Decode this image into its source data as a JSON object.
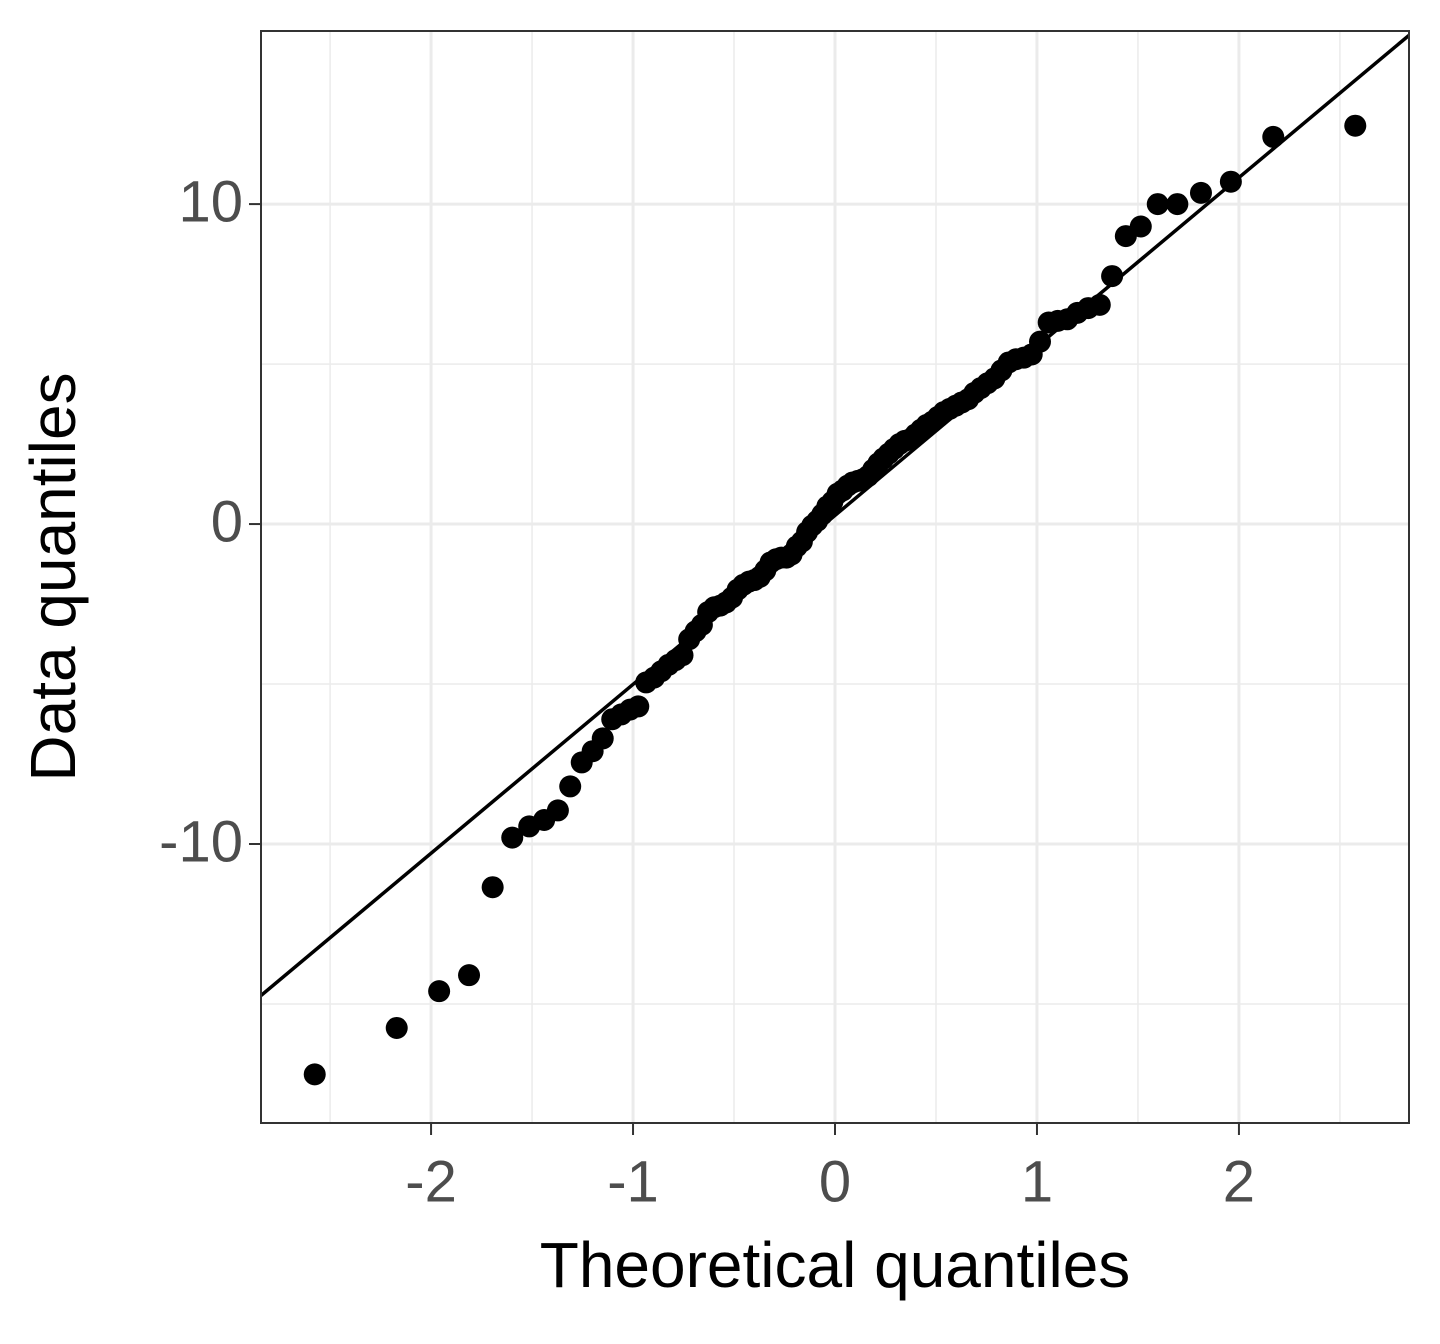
{
  "chart_data": {
    "type": "scatter",
    "xlabel": "Theoretical quantiles",
    "ylabel": "Data quantiles",
    "x": [
      -2.576,
      -2.17,
      -1.96,
      -1.812,
      -1.695,
      -1.598,
      -1.514,
      -1.44,
      -1.372,
      -1.311,
      -1.254,
      -1.2,
      -1.15,
      -1.103,
      -1.058,
      -1.015,
      -0.974,
      -0.935,
      -0.896,
      -0.86,
      -0.824,
      -0.789,
      -0.755,
      -0.722,
      -0.69,
      -0.659,
      -0.628,
      -0.598,
      -0.568,
      -0.539,
      -0.51,
      -0.482,
      -0.454,
      -0.426,
      -0.399,
      -0.372,
      -0.345,
      -0.319,
      -0.292,
      -0.266,
      -0.24,
      -0.215,
      -0.189,
      -0.164,
      -0.138,
      -0.113,
      -0.088,
      -0.063,
      -0.038,
      -0.013,
      0.013,
      0.038,
      0.063,
      0.088,
      0.113,
      0.138,
      0.164,
      0.189,
      0.215,
      0.24,
      0.266,
      0.292,
      0.319,
      0.345,
      0.372,
      0.399,
      0.426,
      0.454,
      0.482,
      0.51,
      0.539,
      0.568,
      0.598,
      0.628,
      0.659,
      0.69,
      0.722,
      0.755,
      0.789,
      0.824,
      0.86,
      0.896,
      0.935,
      0.974,
      1.015,
      1.058,
      1.103,
      1.15,
      1.2,
      1.254,
      1.311,
      1.372,
      1.44,
      1.514,
      1.598,
      1.695,
      1.812,
      1.96,
      2.17,
      2.576
    ],
    "values": [
      -17.2,
      -15.75,
      -14.6,
      -14.1,
      -11.35,
      -9.8,
      -9.45,
      -9.25,
      -8.95,
      -8.2,
      -7.45,
      -7.1,
      -6.7,
      -6.1,
      -5.95,
      -5.8,
      -5.7,
      -4.95,
      -4.8,
      -4.6,
      -4.4,
      -4.25,
      -4.1,
      -3.6,
      -3.35,
      -3.15,
      -2.75,
      -2.6,
      -2.55,
      -2.45,
      -2.3,
      -2.05,
      -1.9,
      -1.8,
      -1.75,
      -1.65,
      -1.45,
      -1.2,
      -1.1,
      -1.05,
      -1.05,
      -0.95,
      -0.7,
      -0.55,
      -0.25,
      -0.05,
      0.1,
      0.3,
      0.55,
      0.7,
      0.95,
      1.05,
      1.2,
      1.3,
      1.35,
      1.4,
      1.5,
      1.7,
      1.9,
      2.05,
      2.2,
      2.35,
      2.5,
      2.6,
      2.65,
      2.8,
      2.95,
      3.1,
      3.2,
      3.35,
      3.5,
      3.6,
      3.7,
      3.8,
      3.9,
      4.1,
      4.25,
      4.4,
      4.55,
      4.8,
      5.05,
      5.15,
      5.2,
      5.3,
      5.7,
      6.3,
      6.35,
      6.4,
      6.6,
      6.75,
      6.85,
      7.75,
      9.0,
      9.3,
      10.0,
      10.0,
      10.35,
      10.7,
      12.1,
      12.45
    ],
    "color": "#000000",
    "reference_line": {
      "intercept": 0.27,
      "slope": 5.28,
      "color": "#000000"
    },
    "xlim": [
      -2.842,
      2.842
    ],
    "ylim": [
      -18.72,
      15.41
    ],
    "xticks": [
      -2,
      -1,
      0,
      1,
      2
    ],
    "yticks": [
      -10,
      0,
      10
    ],
    "minor_xticks": [
      -2.5,
      -1.5,
      -0.5,
      0.5,
      1.5,
      2.5
    ],
    "minor_yticks": [
      -15,
      -5,
      5
    ],
    "grid": true
  }
}
